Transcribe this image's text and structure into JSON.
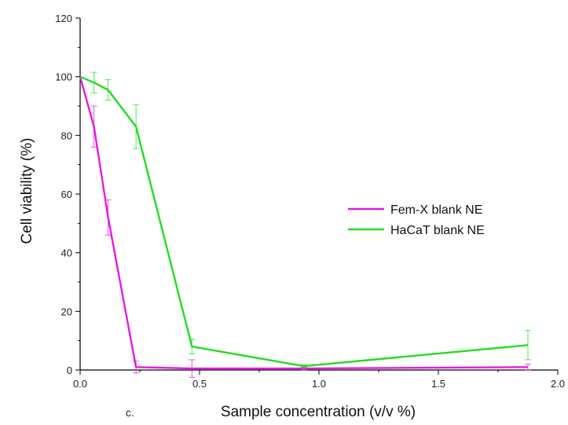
{
  "chart_data": {
    "type": "line",
    "title": "",
    "xlabel": "Sample concentration (v/v %)",
    "ylabel": "Cell viability (%)",
    "xlim": [
      0.0,
      2.0
    ],
    "ylim": [
      0,
      120
    ],
    "x_ticks": [
      0.0,
      0.5,
      1.0,
      1.5,
      2.0
    ],
    "x_tick_labels": [
      "0.0",
      "0.5",
      "1.0",
      "1.5",
      "2.0"
    ],
    "y_ticks": [
      0,
      20,
      40,
      60,
      80,
      100,
      120
    ],
    "y_tick_labels": [
      "0",
      "20",
      "40",
      "60",
      "80",
      "100",
      "120"
    ],
    "grid": false,
    "legend_position": "center-right",
    "panel_label": "c.",
    "series": [
      {
        "name": "Fem-X blank NE",
        "color": "#e619e6",
        "x": [
          0.0,
          0.058,
          0.117,
          0.234,
          0.468,
          0.937,
          1.875
        ],
        "y": [
          100,
          83,
          52,
          1,
          0.5,
          0.5,
          1
        ],
        "error": [
          0,
          7,
          6,
          2,
          3,
          0.5,
          1
        ]
      },
      {
        "name": "HaCaT blank NE",
        "color": "#22dd22",
        "x": [
          0.0,
          0.058,
          0.117,
          0.234,
          0.468,
          0.937,
          1.875
        ],
        "y": [
          100,
          98,
          95.5,
          83,
          8,
          1.3,
          8.5
        ],
        "error": [
          0,
          3.5,
          3.5,
          7.5,
          2.5,
          0.5,
          5
        ]
      }
    ]
  }
}
